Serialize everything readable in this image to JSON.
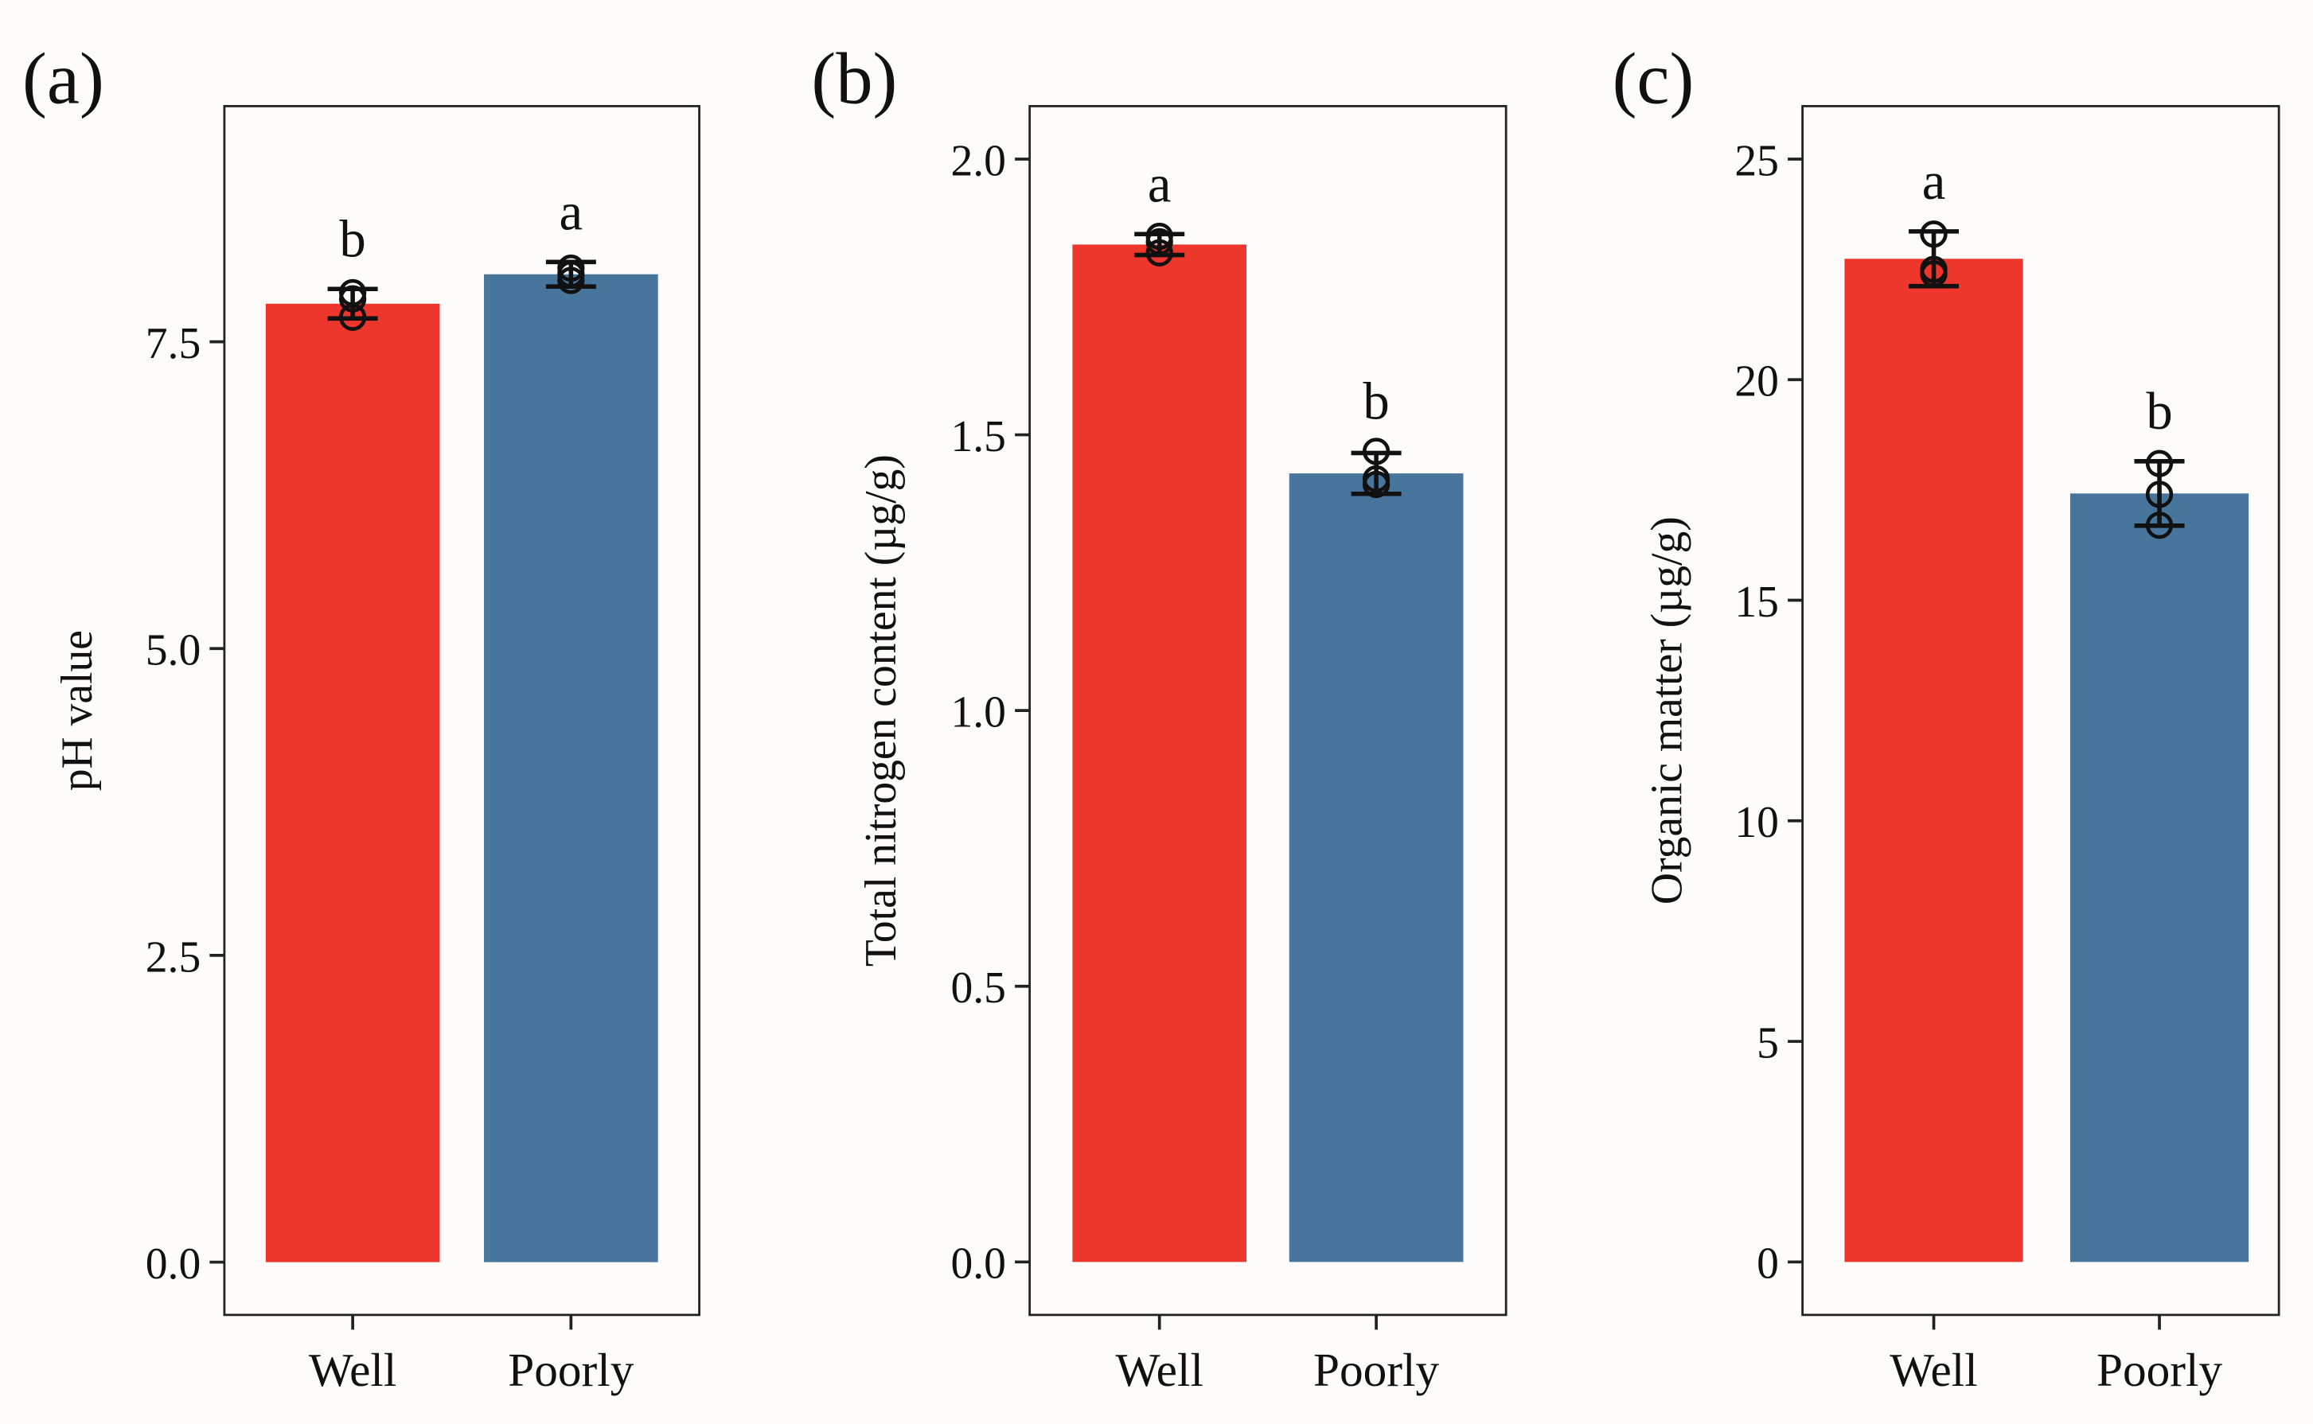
{
  "chart_data": [
    {
      "type": "bar",
      "panel_label": "(a)",
      "ylabel": "pH value",
      "categories": [
        "Well",
        "Poorly"
      ],
      "values": [
        7.81,
        8.05
      ],
      "errors": [
        0.12,
        0.1
      ],
      "points": [
        [
          7.9,
          7.85,
          7.7
        ],
        [
          8.1,
          8.05,
          8.0
        ]
      ],
      "significance": [
        "b",
        "a"
      ],
      "colors": [
        "#ee372c",
        "#48759c"
      ],
      "ylim": [
        -0.43,
        9.42
      ],
      "yticks": [
        {
          "value": 0,
          "label": "0.0"
        },
        2.5,
        {
          "value": 5,
          "label": "5.0"
        },
        7.5
      ]
    },
    {
      "type": "bar",
      "panel_label": "(b)",
      "ylabel": "Total nitrogen content (µg/g)",
      "categories": [
        "Well",
        "Poorly"
      ],
      "values": [
        1.845,
        1.43
      ],
      "errors": [
        0.019,
        0.037
      ],
      "points": [
        [
          1.86,
          1.83,
          1.85
        ],
        [
          1.47,
          1.42,
          1.41
        ]
      ],
      "significance": [
        "a",
        "b"
      ],
      "colors": [
        "#ee372c",
        "#48759c"
      ],
      "ylim": [
        -0.096,
        2.096
      ],
      "yticks": [
        {
          "value": 0,
          "label": "0.0"
        },
        0.5,
        {
          "value": 1,
          "label": "1.0"
        },
        1.5,
        {
          "value": 2,
          "label": "2.0"
        }
      ]
    },
    {
      "type": "bar",
      "panel_label": "(c)",
      "ylabel": "Organic matter (µg/g)",
      "categories": [
        "Well",
        "Poorly"
      ],
      "values": [
        22.74,
        17.42
      ],
      "errors": [
        0.62,
        0.73
      ],
      "points": [
        [
          23.3,
          22.5,
          22.4
        ],
        [
          18.1,
          17.4,
          16.7
        ]
      ],
      "significance": [
        "a",
        "b"
      ],
      "colors": [
        "#ee372c",
        "#48759c"
      ],
      "ylim": [
        -1.2,
        26.2
      ],
      "yticks": [
        0,
        5,
        10,
        15,
        20,
        25
      ]
    }
  ]
}
